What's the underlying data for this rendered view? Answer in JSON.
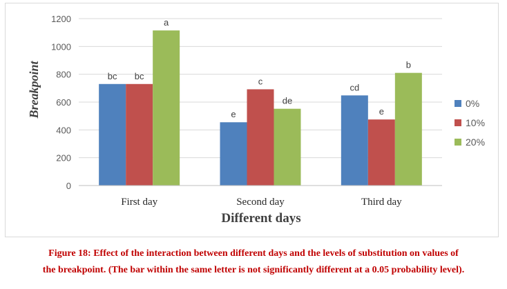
{
  "chart_data": {
    "type": "bar",
    "title": "",
    "xlabel": "Different days",
    "ylabel": "Breakpoint",
    "categories": [
      "First day",
      "Second day",
      "Third day"
    ],
    "ylim": [
      0,
      1200
    ],
    "yticks": [
      0,
      200,
      400,
      600,
      800,
      1000,
      1200
    ],
    "grid": true,
    "legend_position": "right",
    "series": [
      {
        "name": "0%",
        "color": "#4f81bd",
        "values": [
          730,
          455,
          648
        ],
        "letters": [
          "bc",
          "e",
          "cd"
        ]
      },
      {
        "name": "10%",
        "color": "#c0504d",
        "values": [
          730,
          692,
          475
        ],
        "letters": [
          "bc",
          "c",
          "e"
        ]
      },
      {
        "name": "20%",
        "color": "#9bbb59",
        "values": [
          1115,
          552,
          810
        ],
        "letters": [
          "a",
          "de",
          "b"
        ]
      }
    ]
  },
  "caption": {
    "line1": "Figure 18: Effect of the interaction between different days and the levels of substitution on values of",
    "line2": "the breakpoint. (The bar within the same letter is not significantly different at a 0.05 probability level)."
  }
}
